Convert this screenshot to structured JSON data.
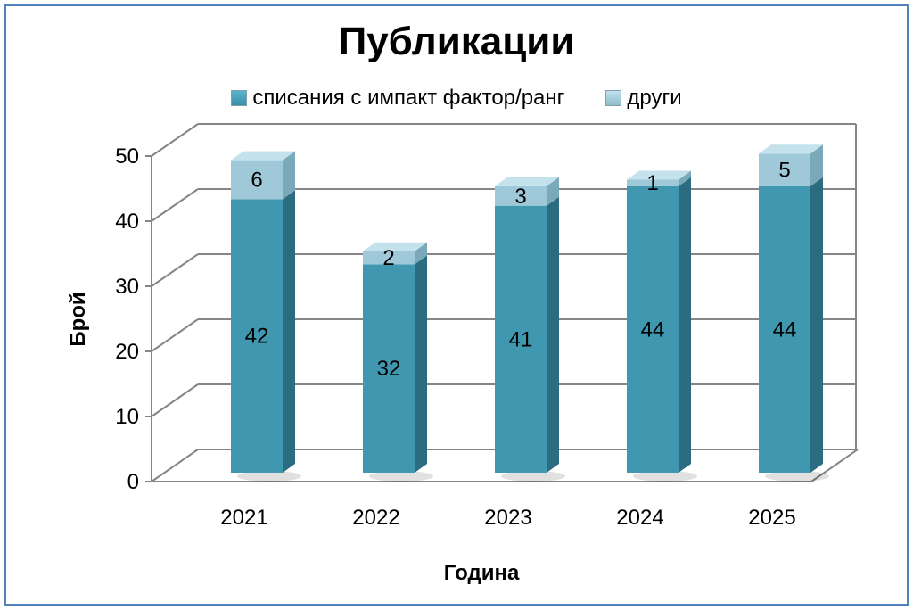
{
  "chart_data": {
    "type": "bar",
    "stacked": true,
    "three_d": true,
    "title": "Публикации",
    "xlabel": "Година",
    "ylabel": "Брой",
    "categories": [
      "2021",
      "2022",
      "2023",
      "2024",
      "2025"
    ],
    "series": [
      {
        "name": "списания с импакт фактор/ранг",
        "values": [
          42,
          32,
          41,
          44,
          44
        ],
        "color": "#4098b0"
      },
      {
        "name": "други",
        "values": [
          6,
          2,
          3,
          1,
          5
        ],
        "color": "#9fc8d8"
      }
    ],
    "ylim": [
      0,
      50
    ],
    "yticks": [
      0,
      10,
      20,
      30,
      40,
      50
    ],
    "grid": true,
    "legend_position": "top"
  },
  "colors": {
    "frame_border": "#4f81bd",
    "grid_line": "#858585"
  }
}
